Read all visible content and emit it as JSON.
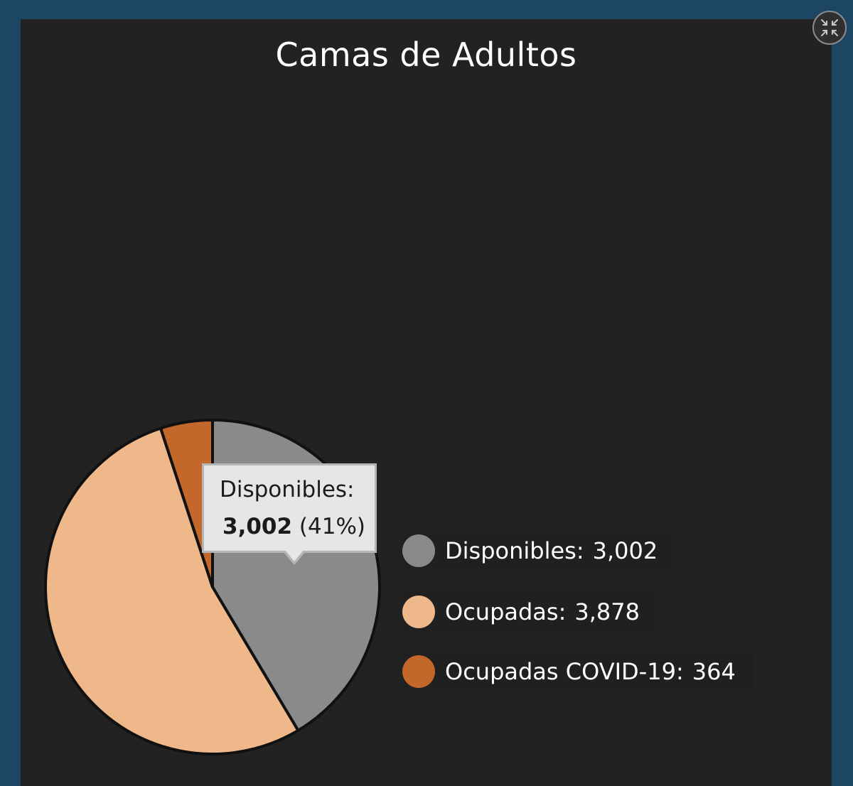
{
  "title": "Camas de Adultos",
  "tooltip": {
    "label": "Disponibles:",
    "value": "3,002",
    "percent": "(41%)"
  },
  "legend": [
    {
      "label": "Disponibles:",
      "value": "3,002",
      "color": "#8a8a8a"
    },
    {
      "label": "Ocupadas:",
      "value": "3,878",
      "color": "#efb88b"
    },
    {
      "label": "Ocupadas COVID-19:",
      "value": "364",
      "color": "#c4672a"
    }
  ],
  "fullscreen_icon": "collapse-icon",
  "chart_data": {
    "type": "pie",
    "title": "Camas de Adultos",
    "categories": [
      "Disponibles",
      "Ocupadas",
      "Ocupadas COVID-19"
    ],
    "values": [
      3002,
      3878,
      364
    ],
    "colors": [
      "#8a8a8a",
      "#efb88b",
      "#c4672a"
    ],
    "legend_position": "right",
    "start": "top",
    "direction": "clockwise"
  }
}
